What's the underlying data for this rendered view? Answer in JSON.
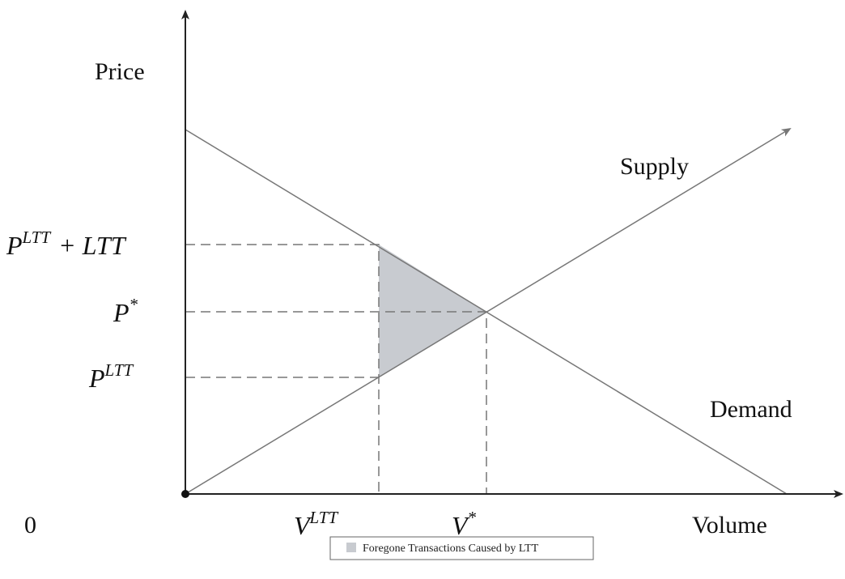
{
  "axes": {
    "y_title": "Price",
    "x_title": "Volume",
    "origin": "0"
  },
  "curves": {
    "supply": "Supply",
    "demand": "Demand"
  },
  "y_labels": [
    {
      "base": "P",
      "sup": "LTT",
      "suffix": "+ LTT"
    },
    {
      "base": "P",
      "sup": "*"
    },
    {
      "base": "P",
      "sup": "LTT"
    }
  ],
  "x_labels": [
    {
      "base": "V",
      "sup": "LTT"
    },
    {
      "base": "V",
      "sup": "*"
    }
  ],
  "legend": {
    "label": "Foregone Transactions Caused by LTT"
  }
}
